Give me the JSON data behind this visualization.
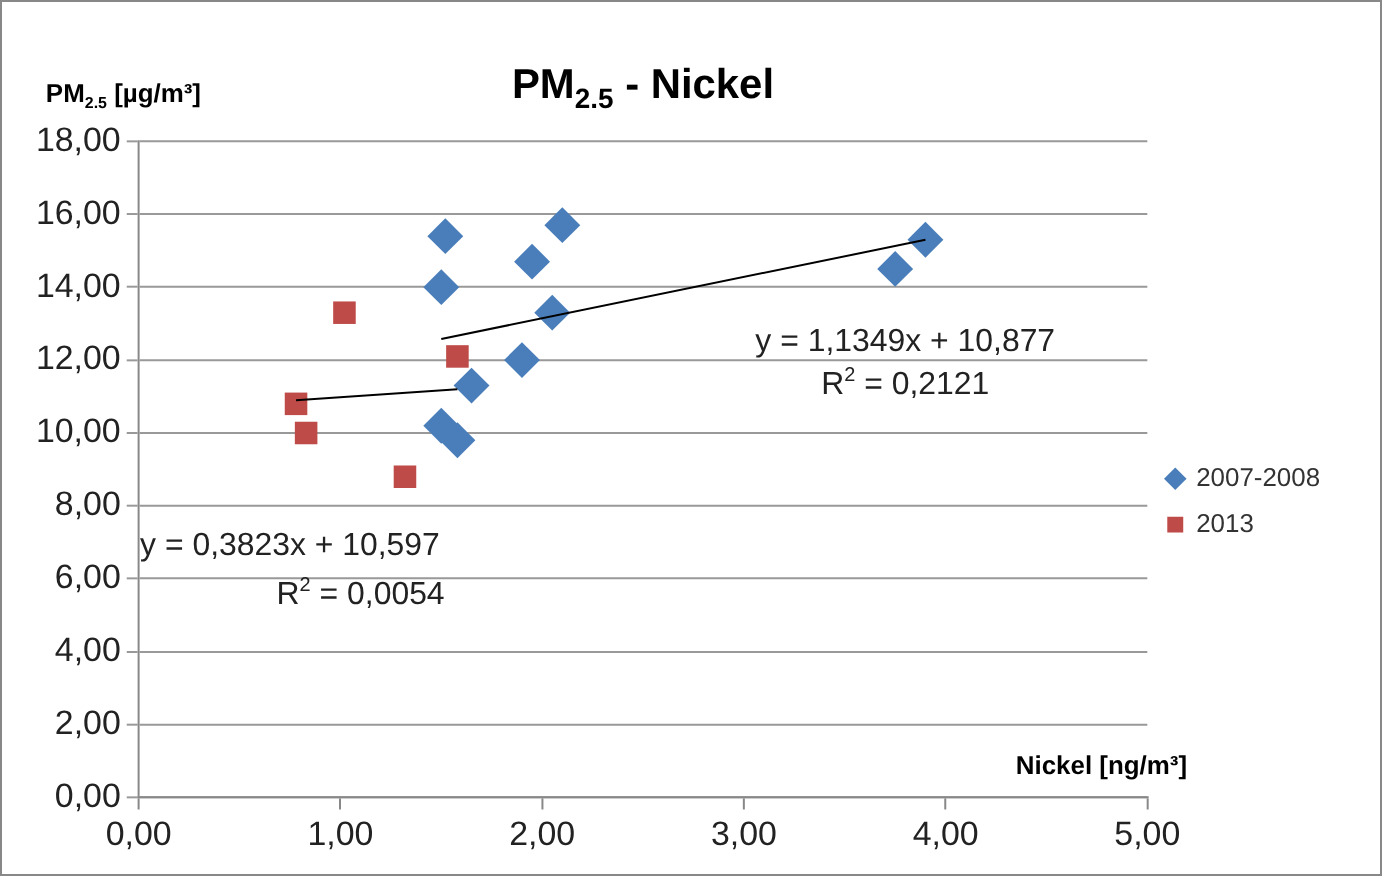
{
  "chart_data": {
    "type": "scatter",
    "title": "PM$_{2.5}$ - Nickel",
    "ylabel": "PM$_{2.5}$ [µg/m³]",
    "xlabel": "Nickel [ng/m³]",
    "xlim": [
      0,
      5
    ],
    "xticks": [
      {
        "value": 0,
        "label": "0,00"
      },
      {
        "value": 1,
        "label": "1,00"
      },
      {
        "value": 2,
        "label": "2,00"
      },
      {
        "value": 3,
        "label": "3,00"
      },
      {
        "value": 4,
        "label": "4,00"
      },
      {
        "value": 5,
        "label": "5,00"
      }
    ],
    "ylim": [
      0,
      18
    ],
    "yticks": [
      {
        "value": 0,
        "label": "0,00"
      },
      {
        "value": 2,
        "label": "2,00"
      },
      {
        "value": 4,
        "label": "4,00"
      },
      {
        "value": 6,
        "label": "6,00"
      },
      {
        "value": 8,
        "label": "8,00"
      },
      {
        "value": 10,
        "label": "10,00"
      },
      {
        "value": 12,
        "label": "12,00"
      },
      {
        "value": 14,
        "label": "14,00"
      },
      {
        "value": 16,
        "label": "16,00"
      },
      {
        "value": 18,
        "label": "18,00"
      }
    ],
    "grid": "y",
    "legend": "right",
    "series": [
      {
        "name": "2007-2008",
        "color": "#4a7ebb",
        "marker": "diamond",
        "x": [
          1.52,
          1.5,
          1.5,
          1.58,
          1.65,
          1.9,
          1.95,
          2.05,
          2.1,
          3.75,
          3.9
        ],
        "values": [
          15.4,
          14.0,
          10.2,
          9.8,
          11.3,
          12.0,
          14.7,
          13.3,
          15.7,
          14.5,
          15.3
        ]
      },
      {
        "name": "2013",
        "color": "#be4b48",
        "marker": "square",
        "x": [
          0.78,
          0.83,
          1.02,
          1.32,
          1.58
        ],
        "values": [
          10.8,
          10.0,
          13.3,
          8.8,
          12.1
        ]
      },
      {
        "type": "line",
        "color": "#000000",
        "marker": "none",
        "x": [
          1.5,
          3.9
        ],
        "values": [
          12.58,
          15.3
        ]
      },
      {
        "type": "line",
        "color": "#000000",
        "marker": "none",
        "x": [
          0.78,
          1.58
        ],
        "values": [
          10.9,
          11.2
        ]
      }
    ],
    "annotations": [
      "y = 1,1349x + 10,877",
      "R$^{2}$ = 0,2121",
      "y = 0,3823x + 10,597",
      "R$^{2}$ = 0,0054"
    ]
  }
}
